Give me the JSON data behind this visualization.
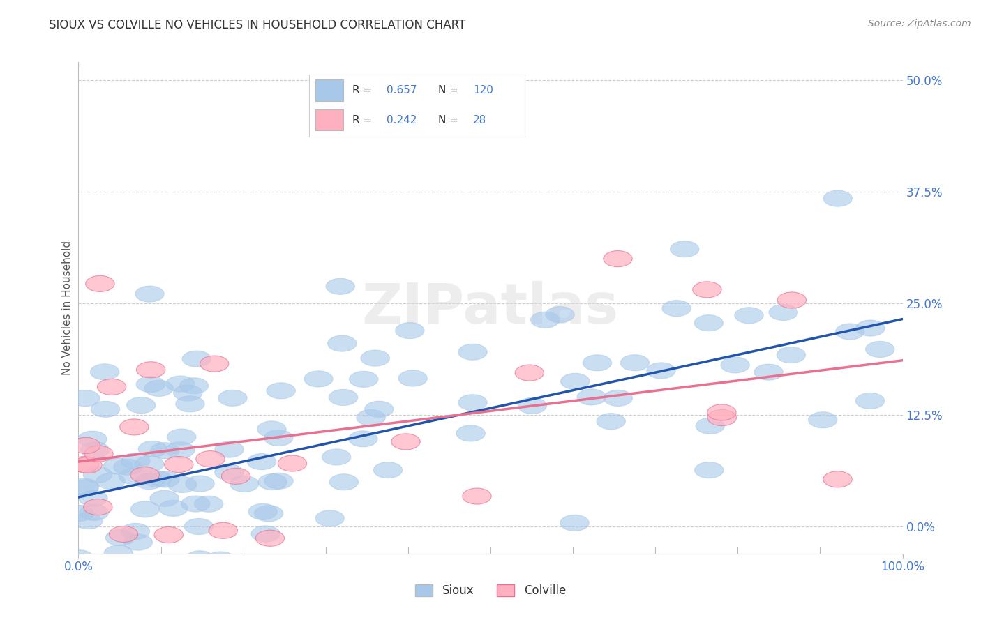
{
  "title": "SIOUX VS COLVILLE NO VEHICLES IN HOUSEHOLD CORRELATION CHART",
  "source": "Source: ZipAtlas.com",
  "ylabel": "No Vehicles in Household",
  "xlim": [
    0,
    100
  ],
  "ylim": [
    -3,
    52
  ],
  "yticks": [
    0,
    12.5,
    25.0,
    37.5,
    50.0
  ],
  "ytick_labels": [
    "0.0%",
    "12.5%",
    "25.0%",
    "37.5%",
    "50.0%"
  ],
  "xtick_labels": [
    "0.0%",
    "100.0%"
  ],
  "sioux_color": "#A8C8EA",
  "sioux_edge_color": "#A8C8EA",
  "sioux_line_color": "#2255AA",
  "colville_color": "#FFB0C0",
  "colville_edge_color": "#E87090",
  "colville_line_color": "#E87090",
  "sioux_R": 0.657,
  "sioux_N": 120,
  "colville_R": 0.242,
  "colville_N": 28,
  "background_color": "#FFFFFF",
  "grid_color": "#CCCCCC",
  "title_color": "#333333",
  "label_color": "#4477CC",
  "watermark_color": "#DDDDDD",
  "sioux_line_intercept": 3.0,
  "sioux_line_slope": 0.22,
  "colville_line_intercept": 5.0,
  "colville_line_slope": 0.08
}
